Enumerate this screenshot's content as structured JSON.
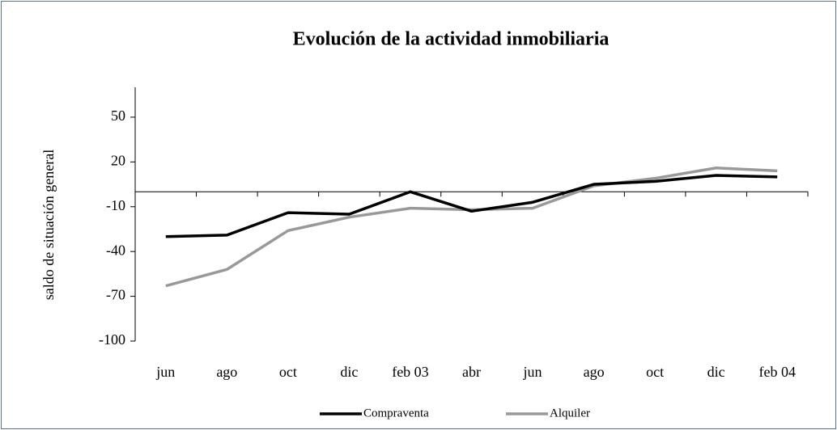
{
  "chart_data": {
    "type": "line",
    "title": "Evolución de la actividad inmobiliaria",
    "y_label": "saldo de situación general",
    "categories": [
      "jun",
      "ago",
      "oct",
      "dic",
      "feb 03",
      "abr",
      "jun",
      "ago",
      "oct",
      "dic",
      "feb 04"
    ],
    "series": [
      {
        "name": "Compraventa",
        "color": "#000000",
        "values": [
          -30,
          -29,
          -14,
          -15,
          0,
          -13,
          -7,
          5,
          7,
          11,
          10
        ]
      },
      {
        "name": "Alquiler",
        "color": "#999999",
        "values": [
          -63,
          -52,
          -26,
          -17,
          -11,
          -12,
          -11,
          4,
          9,
          16,
          14
        ]
      }
    ],
    "ylim": [
      -100,
      70
    ],
    "yticks": [
      -100,
      -70,
      -40,
      -10,
      20,
      50
    ],
    "legend": "bottom"
  }
}
